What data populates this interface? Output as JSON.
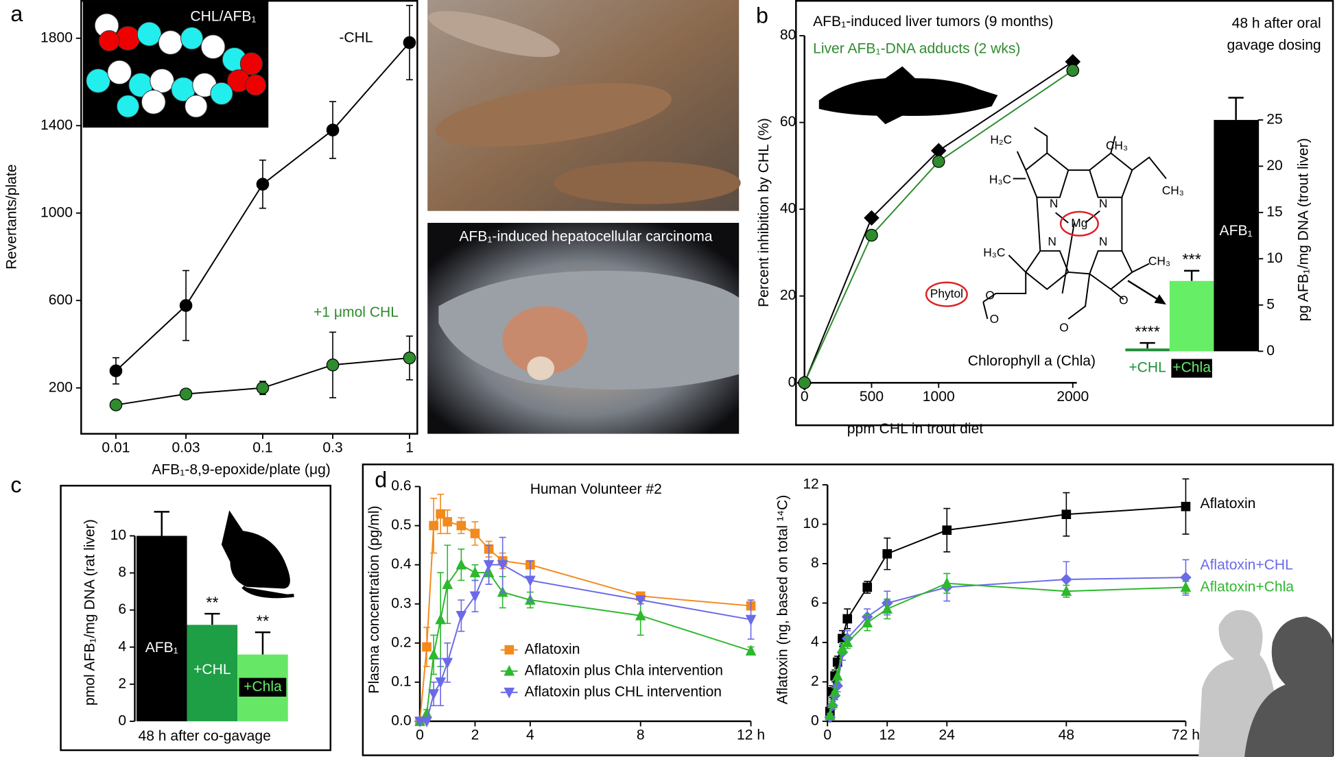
{
  "chart_data": [
    {
      "type": "line",
      "panel": "a",
      "xscale": "log",
      "inset_label": "CHL/AFB₁",
      "xlabel": "AFB₁-8,9-epoxide/plate (μg)",
      "ylabel": "Revertants/plate",
      "x": [
        0.01,
        0.03,
        0.1,
        0.3,
        1
      ],
      "xlim": [
        0.0058,
        1.13
      ],
      "xticks": [
        0.01,
        0.03,
        0.1,
        0.3,
        1
      ],
      "ylim": [
        -10,
        1975
      ],
      "yticks": [
        200,
        600,
        1000,
        1400,
        1800
      ],
      "series": [
        {
          "name": "-CHL",
          "color": "#000000",
          "line_color": "#000000",
          "marker": "circle",
          "values": [
            278,
            577,
            1132,
            1380,
            1780
          ],
          "errors": [
            60,
            160,
            110,
            130,
            170
          ]
        },
        {
          "name": "+1 μmol CHL",
          "color": "#2e8b2e",
          "line_color": "#000000",
          "marker": "circle",
          "values": [
            122,
            172,
            200,
            305,
            337
          ],
          "errors": [
            0,
            0,
            30,
            150,
            100
          ]
        }
      ]
    },
    {
      "type": "line",
      "panel": "b",
      "note": [
        "48 h after oral",
        "gavage dosing"
      ],
      "xlabel": "ppm CHL in trout diet",
      "ylabel": "Percent inhibition by CHL (%)",
      "x": [
        0,
        500,
        1000,
        2000
      ],
      "xlim": [
        0,
        2030
      ],
      "xticks": [
        0,
        500,
        1000,
        2000
      ],
      "ylim": [
        0,
        80
      ],
      "yticks": [
        0,
        20,
        40,
        60,
        80
      ],
      "series": [
        {
          "name": "AFB₁-induced liver tumors (9 months)",
          "color": "#000000",
          "line_color": "#000000",
          "marker": "diamond",
          "values": [
            0,
            38,
            53.5,
            74
          ]
        },
        {
          "name": "Liver AFB₁-DNA adducts (2 wks)",
          "color": "#2e8b2e",
          "line_color": "#2e8b2e",
          "marker": "circle",
          "values": [
            0,
            34,
            51,
            72
          ]
        }
      ]
    },
    {
      "type": "bar",
      "axis": "right",
      "ylabel": "pg AFB₁/mg DNA (trout liver)",
      "categories": [
        "+CHL",
        "+Chla",
        "AFB₁"
      ],
      "values": [
        0.3,
        7.6,
        25
      ],
      "errors": [
        0.6,
        1.1,
        2.4
      ],
      "colors": [
        "#1f8f3a",
        "#66ee66",
        "#000000"
      ],
      "significance": [
        "****",
        "***",
        null
      ],
      "ylim": [
        0,
        25
      ],
      "yticks": [
        0,
        5,
        10,
        15,
        20,
        25
      ]
    },
    {
      "type": "bar",
      "panel": "c",
      "axis": "left",
      "ylabel": "pmol AFB₁/mg DNA (rat liver)",
      "xlabel": "48 h after co-gavage",
      "categories": [
        "AFB₁",
        "+CHL",
        "+Chla"
      ],
      "values": [
        10,
        5.2,
        3.6
      ],
      "errors": [
        1.3,
        0.6,
        1.2
      ],
      "colors": [
        "#000000",
        "#1e9e45",
        "#66e866"
      ],
      "significance": [
        null,
        "**",
        "**"
      ],
      "ylim": [
        0,
        10
      ],
      "yticks": [
        0,
        2,
        4,
        6,
        8,
        10
      ]
    },
    {
      "type": "line",
      "panel": "d",
      "title": "Human Volunteer #2",
      "ylabel": "Plasma concentration (pg/ml)",
      "x": [
        0,
        0.25,
        0.5,
        0.75,
        1,
        1.5,
        2,
        2.5,
        3,
        4,
        8,
        12
      ],
      "xlim": [
        0,
        12
      ],
      "xticks": [
        0,
        2,
        4,
        8,
        {
          "value": 12,
          "label": "12 h"
        }
      ],
      "ylim": [
        0,
        0.6
      ],
      "yticks": [
        {
          "value": 0,
          "label": "0.0"
        },
        0.1,
        0.2,
        0.3,
        0.4,
        0.5,
        0.6
      ],
      "series": [
        {
          "name": "Aflatoxin",
          "color": "#f28a1e",
          "line_color": "#f28a1e",
          "marker": "square",
          "values": [
            0,
            0.19,
            0.5,
            0.53,
            0.51,
            0.5,
            0.48,
            0.44,
            0.41,
            0.4,
            0.32,
            0.295
          ],
          "errors": [
            0,
            0.05,
            0.07,
            0.05,
            0.03,
            0.02,
            0.03,
            0.02,
            0.02,
            0.01,
            0.01,
            0.01
          ]
        },
        {
          "name": "Aflatoxin plus Chla intervention",
          "color": "#2db82d",
          "line_color": "#2db82d",
          "marker": "triangle",
          "values": [
            0,
            0.02,
            0.17,
            0.26,
            0.35,
            0.4,
            0.38,
            0.38,
            0.33,
            0.31,
            0.27,
            0.18
          ],
          "errors": [
            0,
            0.01,
            0.05,
            0.12,
            0.1,
            0.04,
            0.02,
            0.03,
            0.04,
            0.02,
            0.05,
            0.01
          ]
        },
        {
          "name": "Aflatoxin plus CHL intervention",
          "color": "#6a6ae8",
          "line_color": "#6a6ae8",
          "marker": "triangle-down",
          "values": [
            0,
            0,
            0.07,
            0.1,
            0.15,
            0.27,
            0.32,
            0.4,
            0.4,
            0.36,
            0.31,
            0.26
          ],
          "errors": [
            0,
            0,
            0.03,
            0.06,
            0.05,
            0.04,
            0.04,
            0.05,
            0.07,
            0.05,
            0.01,
            0.05
          ]
        }
      ]
    },
    {
      "type": "line",
      "ylabel": "Aflatoxin (ng, based on total ¹⁴C)",
      "x": [
        0.5,
        1,
        1.5,
        2,
        3,
        4,
        8,
        12,
        24,
        48,
        72
      ],
      "xlim": [
        0,
        72
      ],
      "xticks": [
        0,
        12,
        24,
        48,
        {
          "value": 72,
          "label": "72 h"
        }
      ],
      "ylim": [
        0,
        12
      ],
      "yticks": [
        0,
        2,
        4,
        6,
        8,
        10,
        12
      ],
      "series": [
        {
          "name": "Aflatoxin",
          "color": "#000000",
          "line_color": "#000000",
          "marker": "square",
          "values": [
            0.5,
            1.5,
            2.3,
            3,
            4.2,
            5.2,
            6.8,
            8.5,
            9.7,
            10.5,
            10.9
          ],
          "errors": [
            0.3,
            0.3,
            0.3,
            0.3,
            0.4,
            0.5,
            0.3,
            0.8,
            1.1,
            1.1,
            1.4
          ]
        },
        {
          "name": "Aflatoxin+CHL",
          "color": "#6a6ae8",
          "line_color": "#6a6ae8",
          "marker": "diamond",
          "values": [
            0.2,
            0.8,
            1.3,
            1.8,
            3.5,
            4.2,
            5.3,
            6,
            6.8,
            7.2,
            7.3
          ],
          "errors": [
            0.1,
            0.2,
            0.2,
            0.3,
            0.4,
            0.4,
            0.4,
            0.6,
            0.7,
            0.9,
            0.9
          ]
        },
        {
          "name": "Aflatoxin+Chla",
          "color": "#2db82d",
          "line_color": "#2db82d",
          "marker": "triangle",
          "values": [
            0.3,
            0.9,
            1.5,
            2.3,
            3.7,
            4,
            5,
            5.7,
            7,
            6.6,
            6.8
          ],
          "errors": [
            0.1,
            0.2,
            0.2,
            0.3,
            0.3,
            0.3,
            0.4,
            0.5,
            0.5,
            0.3,
            0.3
          ]
        }
      ]
    }
  ],
  "photo_caption": "AFB₁-induced hepatocellular carcinoma",
  "structure": {
    "atoms": [
      "H₂C",
      "CH₃",
      "H₃C",
      "CH₃",
      "N",
      "N",
      "Mg",
      "N",
      "N",
      "H₃C",
      "CH₃",
      "Phytol",
      "O",
      "O",
      "O",
      "O"
    ],
    "name": "Chlorophyll a (Chla)"
  }
}
